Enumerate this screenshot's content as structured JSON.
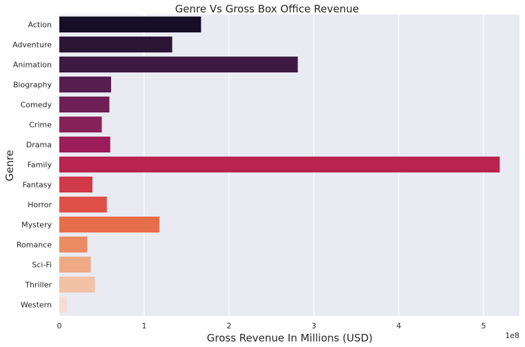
{
  "chart_data": {
    "type": "bar",
    "orientation": "horizontal",
    "title": "Genre Vs Gross Box Office Revenue",
    "xlabel": "Gross Revenue In Millions (USD)",
    "ylabel": "Genre",
    "x_offset_label": "1e8",
    "xlim": [
      0,
      5.4
    ],
    "xticks": [
      "0",
      "1",
      "2",
      "3",
      "4",
      "5"
    ],
    "grid": "x",
    "background": "#eaeaf2",
    "categories": [
      "Action",
      "Adventure",
      "Animation",
      "Biography",
      "Comedy",
      "Crime",
      "Drama",
      "Family",
      "Fantasy",
      "Horror",
      "Mystery",
      "Romance",
      "Sci-Fi",
      "Thriller",
      "Western"
    ],
    "values": [
      1.67,
      1.33,
      2.81,
      0.61,
      0.59,
      0.5,
      0.6,
      5.19,
      0.39,
      0.56,
      1.18,
      0.33,
      0.37,
      0.42,
      0.09
    ],
    "colors": [
      "#150e26",
      "#2b1636",
      "#3d1a42",
      "#561e4f",
      "#6d1f56",
      "#862258",
      "#9d1d5a",
      "#b8244f",
      "#d03a48",
      "#df5148",
      "#e66d4a",
      "#ea8b63",
      "#edaa84",
      "#f1c2a6",
      "#f6ddd0"
    ]
  }
}
